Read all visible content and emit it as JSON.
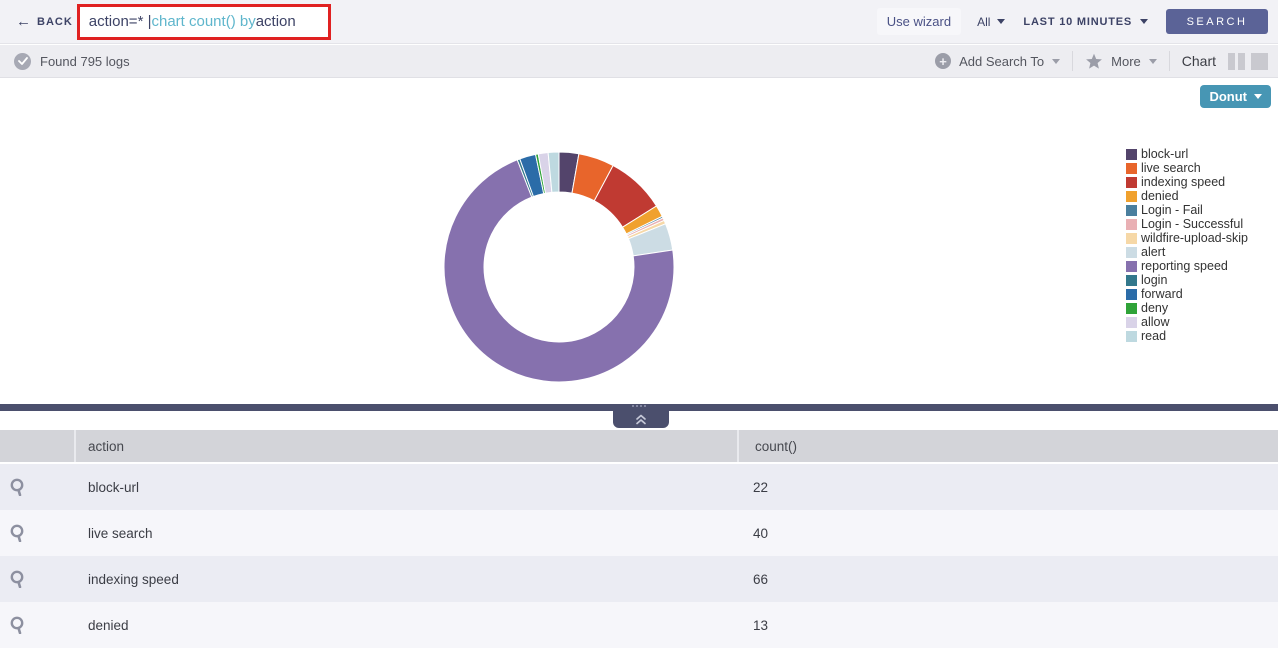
{
  "topbar": {
    "back_label": "BACK",
    "query": {
      "part1": "action=* | ",
      "part2": "chart count() by",
      "part3": " action"
    },
    "use_wizard_label": "Use wizard",
    "scope_label": "All",
    "time_range_label": "LAST 10 MINUTES",
    "search_button_label": "SEARCH"
  },
  "results_bar": {
    "status_text": "Found 795 logs",
    "add_search_to_label": "Add Search To",
    "more_label": "More",
    "chart_label": "Chart"
  },
  "chart_panel": {
    "chart_type_button_label": "Donut"
  },
  "chart_data": {
    "type": "pie",
    "subtype": "donut",
    "title": "chart count() by action",
    "total_count": 795,
    "legend_position": "right",
    "series": [
      {
        "label": "block-url",
        "value": 22,
        "color": "#53446b"
      },
      {
        "label": "live search",
        "value": 40,
        "color": "#e8652b"
      },
      {
        "label": "indexing speed",
        "value": 66,
        "color": "#c03a32"
      },
      {
        "label": "denied",
        "value": 13,
        "color": "#f0a12e"
      },
      {
        "label": "Login - Fail",
        "value": 2,
        "color": "#4a7f9e"
      },
      {
        "label": "Login - Successful",
        "value": 3,
        "color": "#e9b0b4"
      },
      {
        "label": "wildfire-upload-skip",
        "value": 4,
        "color": "#f6d8a7"
      },
      {
        "label": "alert",
        "value": 30,
        "color": "#ccdce4"
      },
      {
        "label": "reporting speed",
        "value": 568,
        "color": "#8671ae"
      },
      {
        "label": "login",
        "value": 3,
        "color": "#33788c"
      },
      {
        "label": "forward",
        "value": 18,
        "color": "#2b6ca8"
      },
      {
        "label": "deny",
        "value": 3,
        "color": "#2fa338"
      },
      {
        "label": "allow",
        "value": 11,
        "color": "#d9d3e8"
      },
      {
        "label": "read",
        "value": 12,
        "color": "#bed9e0"
      }
    ]
  },
  "table": {
    "columns": [
      "action",
      "count()"
    ],
    "rows": [
      {
        "action": "block-url",
        "count": "22"
      },
      {
        "action": "live search",
        "count": "40"
      },
      {
        "action": "indexing speed",
        "count": "66"
      },
      {
        "action": "denied",
        "count": "13"
      }
    ]
  },
  "colors": {
    "accent_teal": "#4796b4",
    "search_button": "#5b6397",
    "annotation_red": "#e02121",
    "splitter": "#4b4f6d"
  }
}
